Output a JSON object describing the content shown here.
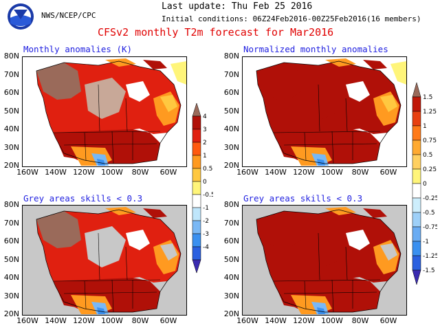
{
  "agency": "NWS/NCEP/CPC",
  "last_update": "Last update: Thu Feb 25 2016",
  "initial_conditions": "Initial conditions: 06Z24Feb2016-00Z25Feb2016(16 members)",
  "title": "CFSv2 monthly T2m forecast for Mar2016",
  "panels": [
    {
      "title": "Monthly anomalies (K)"
    },
    {
      "title": "Normalized monthly anomalies"
    },
    {
      "title": "Grey areas skills < 0.3"
    },
    {
      "title": "Grey areas skills < 0.3"
    }
  ],
  "lat_labels": [
    "80N",
    "70N",
    "60N",
    "50N",
    "40N",
    "30N",
    "20N"
  ],
  "lon_labels": [
    "160W",
    "140W",
    "120W",
    "100W",
    "80W",
    "60W"
  ],
  "colorbar_k": {
    "colors": [
      "#3a2bb0",
      "#2a60e0",
      "#3a90f0",
      "#7ab8f5",
      "#bfe6fb",
      "#ffffff",
      "#fff57a",
      "#ffc840",
      "#ff9a20",
      "#ff5a10",
      "#e02010",
      "#b01008",
      "#9a6a5a"
    ],
    "labels": [
      "-4",
      "-3",
      "-2",
      "-1",
      "-0.5",
      "0",
      "0.5",
      "1",
      "2",
      "3",
      "4"
    ]
  },
  "colorbar_norm": {
    "colors": [
      "#3a2bb0",
      "#2a60e0",
      "#3a90f0",
      "#6aacf3",
      "#9ed0f8",
      "#cdeefc",
      "#ffffff",
      "#fff57a",
      "#ffd060",
      "#ffaa30",
      "#ff7a18",
      "#e84010",
      "#c01808",
      "#9a6a5a"
    ],
    "labels": [
      "-1.5",
      "-1.25",
      "-1",
      "-0.75",
      "-0.5",
      "-0.25",
      "0",
      "0.25",
      "0.5",
      "0.75",
      "1",
      "1.25",
      "1.5"
    ]
  },
  "map_colors": {
    "ocean": "#ffffff",
    "grey": "#c8c8c8",
    "brown_dark": "#9a6a5a",
    "brown_light": "#c8a898",
    "red_dark": "#b01008",
    "red": "#e02010",
    "orange": "#ff9a20",
    "orange_light": "#ffc840",
    "yellow": "#fff57a",
    "blue_light": "#7ab8f5",
    "blue": "#3a90f0",
    "blue_dark": "#2a60e0"
  }
}
